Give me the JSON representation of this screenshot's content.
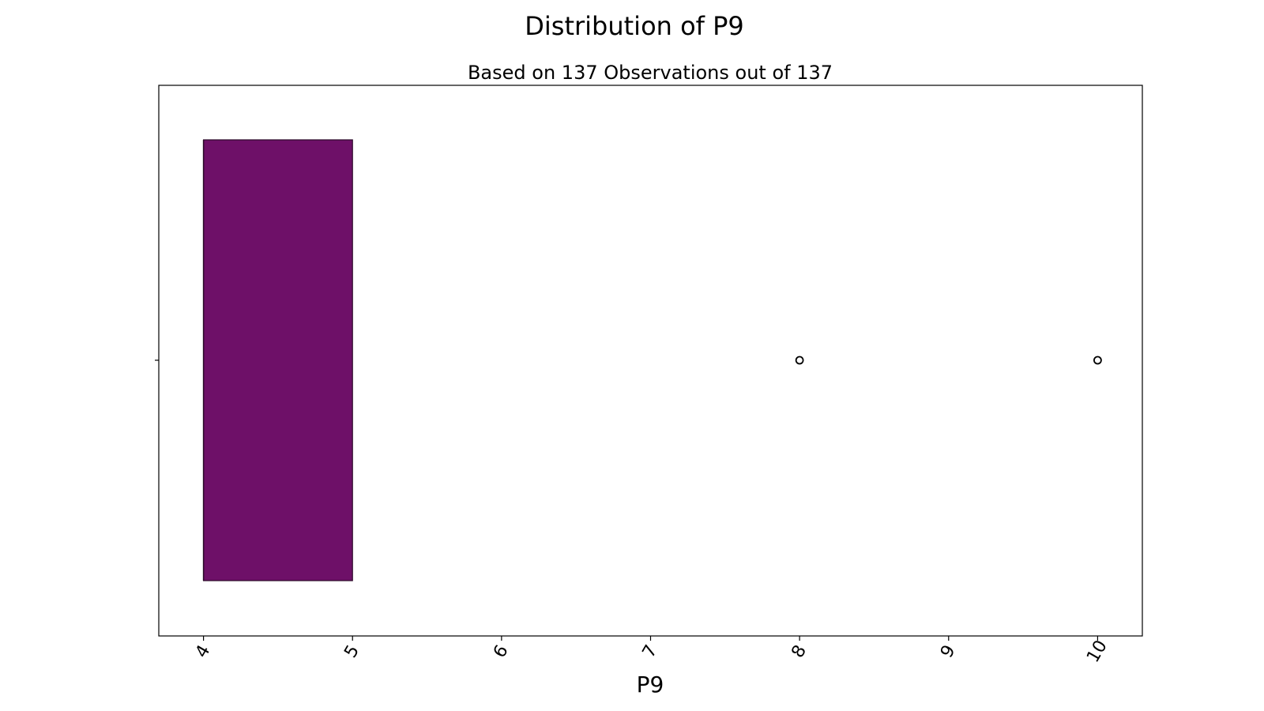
{
  "chart_data": {
    "type": "box",
    "title": "Distribution of P9",
    "subtitle": "Based on 137 Observations out of 137",
    "xlabel": "P9",
    "ylabel": "",
    "xlim": [
      3.7,
      10.3
    ],
    "xticks": [
      "4",
      "5",
      "6",
      "7",
      "8",
      "9",
      "10"
    ],
    "box": {
      "min": 4,
      "q1": 4,
      "median": 4,
      "q3": 5,
      "max": 5,
      "outliers": [
        8,
        10
      ]
    },
    "box_color": "#6e1068",
    "grid": false
  }
}
